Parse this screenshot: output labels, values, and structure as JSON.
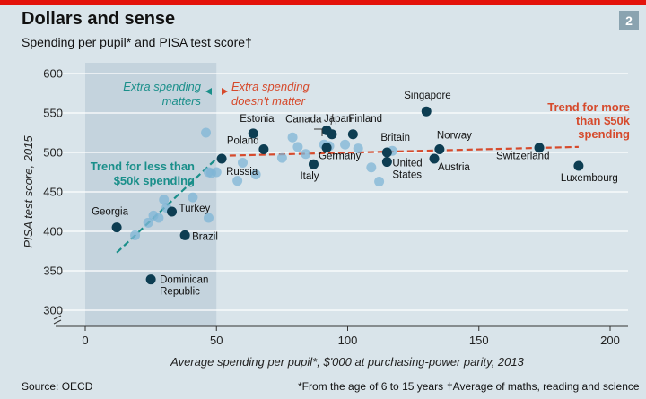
{
  "header": {
    "title": "Dollars and sense",
    "subtitle": "Spending per pupil* and PISA test score†",
    "badge": "2"
  },
  "footer": {
    "source": "Source: OECD",
    "note1": "*From the age of 6 to 15 years",
    "note2": "†Average of maths, reading and science"
  },
  "colors": {
    "highlight": "#0d3d52",
    "background_dot": "#7fb6d6",
    "low_trend": "#1a8f8a",
    "high_trend": "#d64a2c",
    "shade": "#c4d3dd",
    "accent": "#e3120b"
  },
  "chart_data": {
    "type": "scatter",
    "xlabel": "Average spending per pupil*, $'000 at purchasing-power parity, 2013",
    "ylabel": "PISA test score, 2015",
    "xlim": [
      0,
      200
    ],
    "ylim": [
      300,
      600
    ],
    "xticks": [
      0,
      50,
      100,
      150,
      200
    ],
    "yticks": [
      300,
      350,
      400,
      450,
      500,
      550,
      600
    ],
    "grid": "horizontal",
    "shaded_region": {
      "x": [
        0,
        50
      ]
    },
    "annotations": [
      {
        "text": [
          "Extra spending",
          "matters"
        ],
        "color": "#1a8f8a"
      },
      {
        "text": [
          "Extra spending",
          "doesn't matter"
        ],
        "color": "#d64a2c"
      }
    ],
    "trend_labels": [
      {
        "text": [
          "Trend for less than",
          "$50k spending"
        ],
        "color": "#1a8f8a"
      },
      {
        "text": [
          "Trend for more",
          "than $50k",
          "spending"
        ],
        "color": "#d64a2c"
      }
    ],
    "trend_lines": [
      {
        "name": "low",
        "x": [
          12,
          50
        ],
        "y": [
          373,
          492
        ]
      },
      {
        "name": "high",
        "x": [
          55,
          188
        ],
        "y": [
          496,
          507
        ]
      }
    ],
    "labeled_points": [
      {
        "label": "Georgia",
        "x": 12,
        "y": 405
      },
      {
        "label": "Dominican Republic",
        "x": 25,
        "y": 339
      },
      {
        "label": "Turkey",
        "x": 33,
        "y": 425
      },
      {
        "label": "Brazil",
        "x": 38,
        "y": 395
      },
      {
        "label": "Russia",
        "x": 52,
        "y": 492
      },
      {
        "label": "Estonia",
        "x": 64,
        "y": 524
      },
      {
        "label": "Poland",
        "x": 68,
        "y": 504
      },
      {
        "label": "Italy",
        "x": 87,
        "y": 485
      },
      {
        "label": "Canada",
        "x": 92,
        "y": 528
      },
      {
        "label": "Japan",
        "x": 94,
        "y": 523
      },
      {
        "label": "Germany",
        "x": 92,
        "y": 506
      },
      {
        "label": "Finland",
        "x": 102,
        "y": 523
      },
      {
        "label": "Britain",
        "x": 115,
        "y": 500
      },
      {
        "label": "United States",
        "x": 115,
        "y": 488
      },
      {
        "label": "Singapore",
        "x": 130,
        "y": 552
      },
      {
        "label": "Norway",
        "x": 135,
        "y": 504
      },
      {
        "label": "Austria",
        "x": 133,
        "y": 492
      },
      {
        "label": "Switzerland",
        "x": 173,
        "y": 506
      },
      {
        "label": "Luxembourg",
        "x": 188,
        "y": 483
      }
    ],
    "other_points": [
      {
        "x": 19,
        "y": 395
      },
      {
        "x": 24,
        "y": 411
      },
      {
        "x": 26,
        "y": 420
      },
      {
        "x": 28,
        "y": 417
      },
      {
        "x": 30,
        "y": 440
      },
      {
        "x": 31,
        "y": 430
      },
      {
        "x": 41,
        "y": 443
      },
      {
        "x": 47,
        "y": 417
      },
      {
        "x": 46,
        "y": 525
      },
      {
        "x": 47,
        "y": 475
      },
      {
        "x": 48,
        "y": 474
      },
      {
        "x": 50,
        "y": 475
      },
      {
        "x": 58,
        "y": 464
      },
      {
        "x": 60,
        "y": 487
      },
      {
        "x": 65,
        "y": 472
      },
      {
        "x": 75,
        "y": 493
      },
      {
        "x": 79,
        "y": 519
      },
      {
        "x": 81,
        "y": 507
      },
      {
        "x": 84,
        "y": 498
      },
      {
        "x": 91,
        "y": 510
      },
      {
        "x": 93,
        "y": 508
      },
      {
        "x": 99,
        "y": 510
      },
      {
        "x": 104,
        "y": 505
      },
      {
        "x": 109,
        "y": 481
      },
      {
        "x": 112,
        "y": 463
      },
      {
        "x": 117,
        "y": 502
      }
    ]
  }
}
